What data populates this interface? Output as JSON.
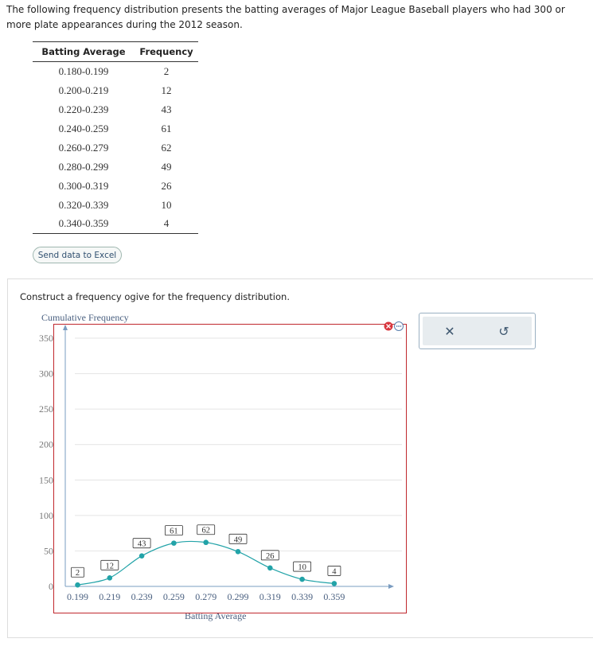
{
  "intro_text": "The following frequency distribution presents the batting averages of Major League Baseball players who had 300 or more plate appearances during the 2012 season.",
  "table": {
    "headers": [
      "Batting Average",
      "Frequency"
    ],
    "rows": [
      [
        "0.180-0.199",
        "2"
      ],
      [
        "0.200-0.219",
        "12"
      ],
      [
        "0.220-0.239",
        "43"
      ],
      [
        "0.240-0.259",
        "61"
      ],
      [
        "0.260-0.279",
        "62"
      ],
      [
        "0.280-0.299",
        "49"
      ],
      [
        "0.300-0.319",
        "26"
      ],
      [
        "0.320-0.339",
        "10"
      ],
      [
        "0.340-0.359",
        "4"
      ]
    ]
  },
  "send_button_label": "Send data to Excel",
  "instruction": "Construct a frequency ogive for the frequency distribution.",
  "answer_controls": {
    "clear_icon": "close-icon",
    "reset_icon": "reset-icon",
    "clear_glyph": "✕",
    "reset_glyph": "↺"
  },
  "chart_data": {
    "type": "line",
    "ylabel": "Cumulative Frequency",
    "xlabel": "Batting Average",
    "categories": [
      "0.199",
      "0.219",
      "0.239",
      "0.259",
      "0.279",
      "0.299",
      "0.319",
      "0.339",
      "0.359"
    ],
    "values": [
      2,
      12,
      43,
      61,
      62,
      49,
      26,
      10,
      4
    ],
    "point_labels": [
      "2",
      "12",
      "43",
      "61",
      "62",
      "49",
      "26",
      "10",
      "4"
    ],
    "ylim": [
      0,
      350
    ],
    "yticks": [
      "0",
      "50",
      "100",
      "150",
      "200",
      "250",
      "300",
      "350"
    ],
    "grid": true,
    "colors": {
      "line": "#22a3a8",
      "frame": "#c0272d",
      "grid": "#e4e4e4",
      "axis": "#7a9cc0"
    }
  }
}
